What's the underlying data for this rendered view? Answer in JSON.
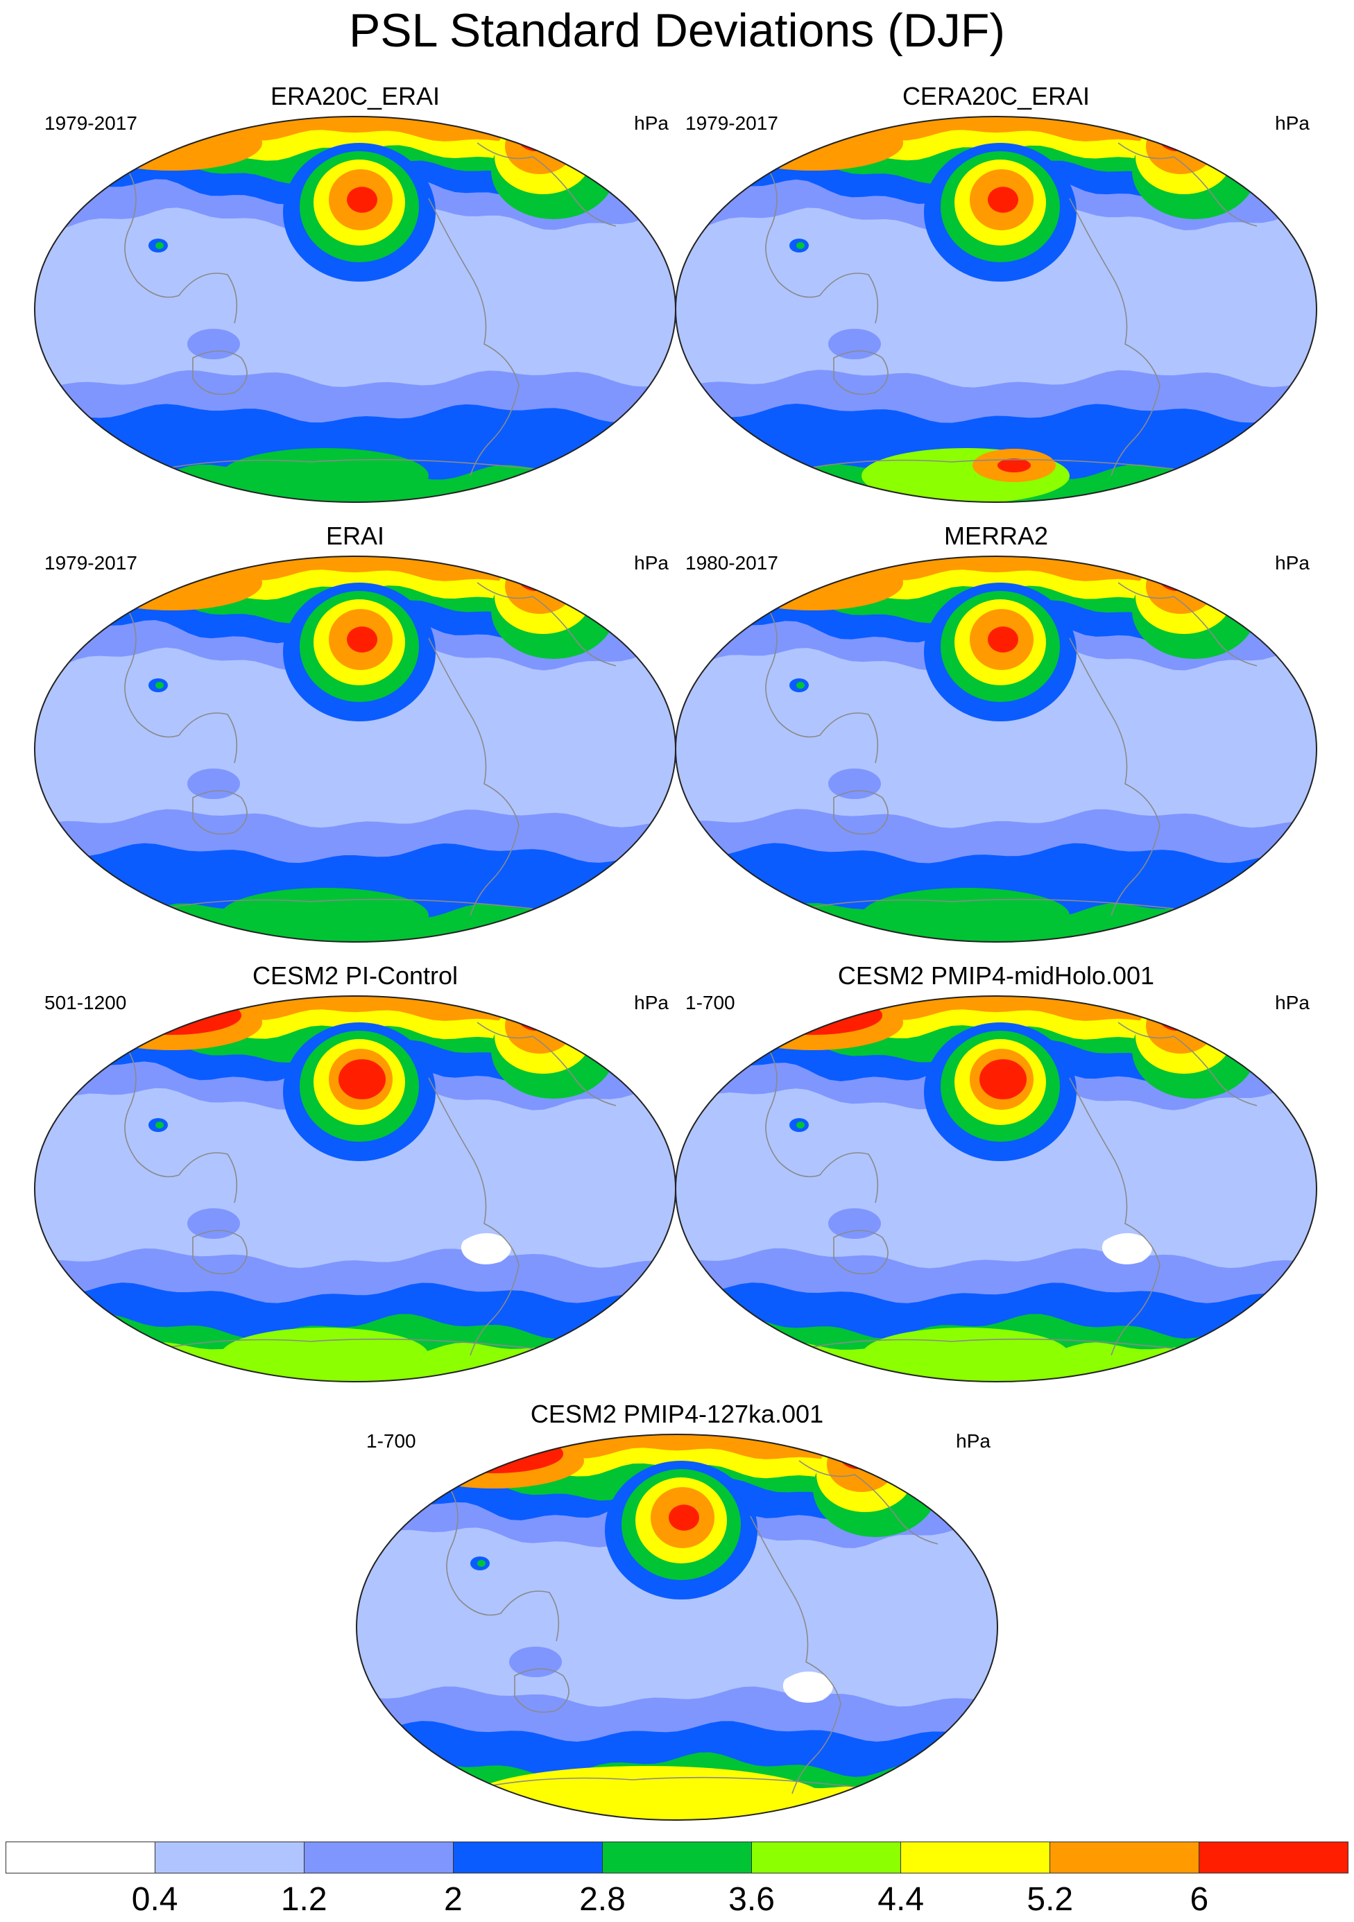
{
  "title": "PSL Standard Deviations (DJF)",
  "units": "hPa",
  "colorbar": {
    "colors": [
      "#ffffff",
      "#b0c4ff",
      "#7f96ff",
      "#0a5cff",
      "#00c434",
      "#8cff00",
      "#ffff00",
      "#ff9a00",
      "#ff1e00"
    ],
    "labels": [
      "0.4",
      "1.2",
      "2",
      "2.8",
      "3.6",
      "4.4",
      "5.2",
      "6"
    ]
  },
  "panels": [
    {
      "title": "ERA20C_ERAI",
      "years": "1979-2017",
      "units": "hPa",
      "variant": "era20c"
    },
    {
      "title": "CERA20C_ERAI",
      "years": "1979-2017",
      "units": "hPa",
      "variant": "cera20c"
    },
    {
      "title": "ERAI",
      "years": "1979-2017",
      "units": "hPa",
      "variant": "erai"
    },
    {
      "title": "MERRA2",
      "years": "1980-2017",
      "units": "hPa",
      "variant": "merra2"
    },
    {
      "title": "CESM2 PI-Control",
      "years": "501-1200",
      "units": "hPa",
      "variant": "picontrol"
    },
    {
      "title": "CESM2 PMIP4-midHolo.001",
      "years": "1-700",
      "units": "hPa",
      "variant": "midholo"
    },
    {
      "title": "CESM2 PMIP4-127ka.001",
      "years": "1-700",
      "units": "hPa",
      "variant": "ka127"
    }
  ]
}
